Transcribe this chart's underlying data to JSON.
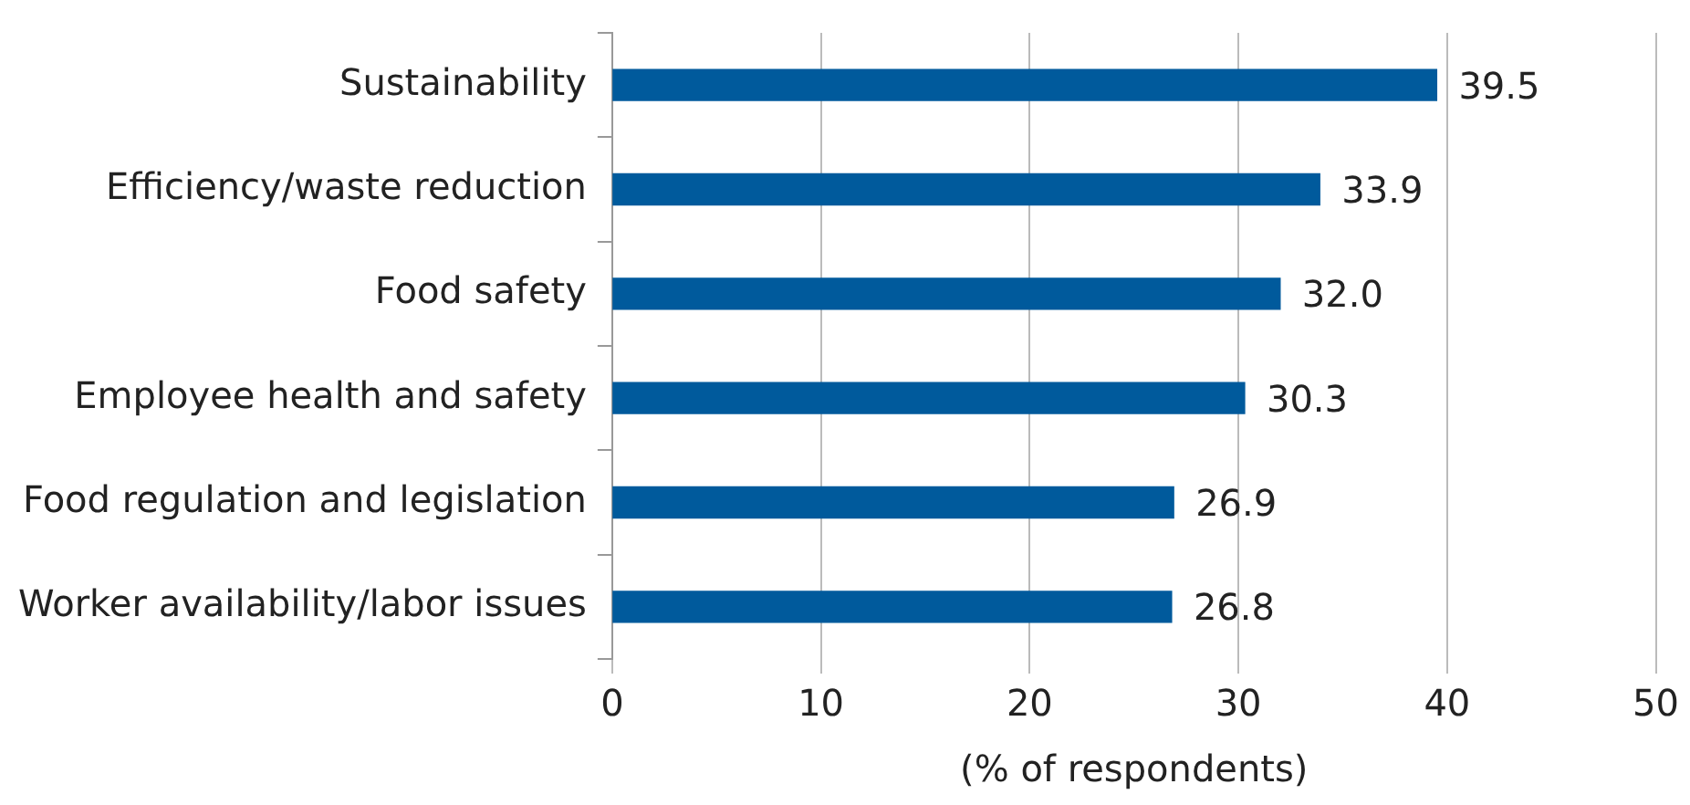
{
  "chart_data": {
    "type": "bar",
    "orientation": "horizontal",
    "xlabel": "(% of respondents)",
    "categories": [
      "Sustainability",
      "Efficiency/waste reduction",
      "Food safety",
      "Employee health and safety",
      "Food regulation and legislation",
      "Worker availability/labor issues"
    ],
    "values": [
      39.5,
      33.9,
      32.0,
      30.3,
      26.9,
      26.8
    ],
    "value_labels": [
      "39.5",
      "33.9",
      "32.0",
      "30.3",
      "26.9",
      "26.8"
    ],
    "color": "#005a9c",
    "xlim": [
      0,
      50
    ],
    "xticks": [
      0,
      10,
      20,
      30,
      40,
      50
    ],
    "grid": "x",
    "legend": false
  }
}
